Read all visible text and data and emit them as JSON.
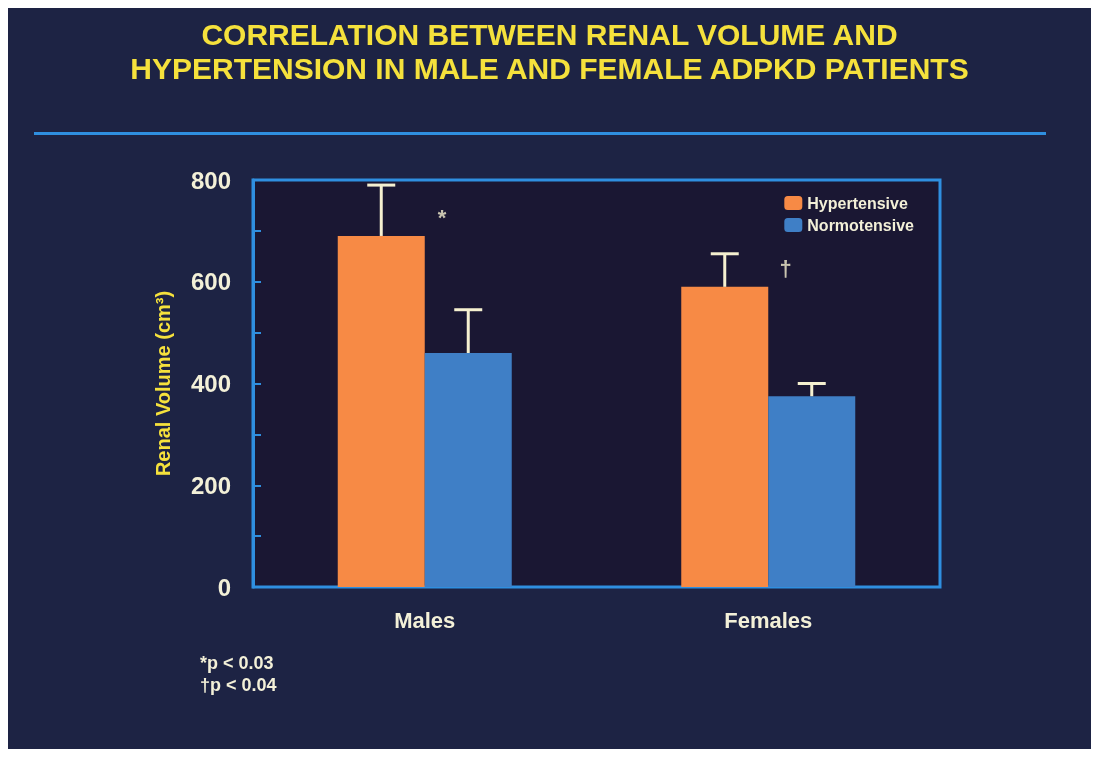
{
  "chart_data": {
    "type": "bar",
    "title": "CORRELATION BETWEEN RENAL VOLUME AND\nHYPERTENSION IN MALE AND FEMALE ADPKD PATIENTS",
    "ylabel": "Renal Volume (cm³)",
    "categories": [
      "Males",
      "Females"
    ],
    "series": [
      {
        "name": "Hypertensive",
        "color": "#f78a45",
        "values": [
          690,
          590
        ],
        "errors": [
          [
            690,
            790
          ],
          [
            590,
            655
          ]
        ]
      },
      {
        "name": "Normotensive",
        "color": "#3f7fc6",
        "values": [
          460,
          375
        ],
        "errors": [
          [
            460,
            545
          ],
          [
            375,
            400
          ]
        ]
      }
    ],
    "ylim": [
      0,
      800
    ],
    "yticks": [
      0,
      {
        "value": 100,
        "label": null
      },
      200,
      {
        "value": 300,
        "label": null
      },
      400,
      {
        "value": 500,
        "label": null
      },
      600,
      {
        "value": 700,
        "label": null
      },
      800
    ],
    "annotations": [
      {
        "text": "*",
        "x": "Males",
        "y": 690
      },
      {
        "text": "†",
        "x": "Females",
        "y": 590
      },
      "*p < 0.03",
      "†p < 0.04"
    ],
    "grid": false,
    "legend": "top right"
  }
}
